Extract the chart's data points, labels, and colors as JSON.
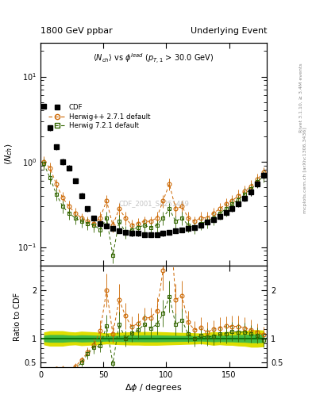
{
  "title_left": "1800 GeV ppbar",
  "title_right": "Underlying Event",
  "subtitle": "$\\langle N_{ch}\\rangle$ vs $\\phi^{lead}$ ($p_{T,1}$ > 30.0 GeV)",
  "ylabel_main": "$\\langle N_{ch}\\rangle$",
  "ylabel_ratio": "Ratio to CDF",
  "xlabel": "$\\Delta\\phi$ / degrees",
  "watermark": "CDF_2001_S4251469",
  "right_label_top": "Rivet 3.1.10, ≥ 3.4M events",
  "right_label_bottom": "mcplots.cern.ch [arXiv:1306.3436]",
  "cdf_x": [
    2.5,
    7.5,
    12.5,
    17.5,
    22.5,
    27.5,
    32.5,
    37.5,
    42.5,
    47.5,
    52.5,
    57.5,
    62.5,
    67.5,
    72.5,
    77.5,
    82.5,
    87.5,
    92.5,
    97.5,
    102.5,
    107.5,
    112.5,
    117.5,
    122.5,
    127.5,
    132.5,
    137.5,
    142.5,
    147.5,
    152.5,
    157.5,
    162.5,
    167.5,
    172.5,
    177.5
  ],
  "cdf_y": [
    4.5,
    2.5,
    1.5,
    1.0,
    0.85,
    0.6,
    0.4,
    0.28,
    0.22,
    0.19,
    0.175,
    0.165,
    0.155,
    0.15,
    0.145,
    0.145,
    0.14,
    0.14,
    0.14,
    0.145,
    0.15,
    0.155,
    0.16,
    0.165,
    0.17,
    0.18,
    0.195,
    0.21,
    0.23,
    0.255,
    0.28,
    0.32,
    0.37,
    0.44,
    0.55,
    0.7
  ],
  "cdf_yerr": [
    0.3,
    0.2,
    0.12,
    0.08,
    0.06,
    0.04,
    0.03,
    0.02,
    0.015,
    0.012,
    0.01,
    0.01,
    0.01,
    0.01,
    0.01,
    0.01,
    0.01,
    0.01,
    0.01,
    0.01,
    0.01,
    0.01,
    0.01,
    0.01,
    0.01,
    0.01,
    0.012,
    0.015,
    0.015,
    0.018,
    0.02,
    0.025,
    0.03,
    0.04,
    0.05,
    0.06
  ],
  "hpp_x": [
    2.5,
    7.5,
    12.5,
    17.5,
    22.5,
    27.5,
    32.5,
    37.5,
    42.5,
    47.5,
    52.5,
    57.5,
    62.5,
    67.5,
    72.5,
    77.5,
    82.5,
    87.5,
    92.5,
    97.5,
    102.5,
    107.5,
    112.5,
    117.5,
    122.5,
    127.5,
    132.5,
    137.5,
    142.5,
    147.5,
    152.5,
    157.5,
    162.5,
    167.5,
    172.5,
    177.5
  ],
  "hpp_y": [
    1.0,
    0.85,
    0.55,
    0.38,
    0.3,
    0.25,
    0.22,
    0.2,
    0.19,
    0.22,
    0.35,
    0.18,
    0.28,
    0.22,
    0.18,
    0.19,
    0.2,
    0.2,
    0.22,
    0.35,
    0.55,
    0.28,
    0.3,
    0.22,
    0.2,
    0.22,
    0.22,
    0.25,
    0.28,
    0.32,
    0.35,
    0.4,
    0.45,
    0.52,
    0.62,
    0.75
  ],
  "hpp_yerr": [
    0.15,
    0.12,
    0.08,
    0.06,
    0.05,
    0.04,
    0.03,
    0.03,
    0.03,
    0.04,
    0.06,
    0.03,
    0.05,
    0.04,
    0.03,
    0.03,
    0.03,
    0.03,
    0.04,
    0.06,
    0.09,
    0.05,
    0.05,
    0.04,
    0.03,
    0.04,
    0.04,
    0.04,
    0.05,
    0.05,
    0.06,
    0.07,
    0.08,
    0.09,
    0.1,
    0.12
  ],
  "h721_x": [
    2.5,
    7.5,
    12.5,
    17.5,
    22.5,
    27.5,
    32.5,
    37.5,
    42.5,
    47.5,
    52.5,
    57.5,
    62.5,
    67.5,
    72.5,
    77.5,
    82.5,
    87.5,
    92.5,
    97.5,
    102.5,
    107.5,
    112.5,
    117.5,
    122.5,
    127.5,
    132.5,
    137.5,
    142.5,
    147.5,
    152.5,
    157.5,
    162.5,
    167.5,
    172.5,
    177.5
  ],
  "h721_y": [
    0.95,
    0.65,
    0.42,
    0.3,
    0.25,
    0.22,
    0.2,
    0.19,
    0.18,
    0.16,
    0.22,
    0.08,
    0.2,
    0.15,
    0.16,
    0.17,
    0.18,
    0.17,
    0.18,
    0.22,
    0.28,
    0.2,
    0.22,
    0.18,
    0.17,
    0.19,
    0.2,
    0.22,
    0.25,
    0.28,
    0.32,
    0.36,
    0.42,
    0.48,
    0.58,
    0.68
  ],
  "h721_yerr": [
    0.14,
    0.1,
    0.07,
    0.05,
    0.04,
    0.035,
    0.03,
    0.03,
    0.03,
    0.025,
    0.04,
    0.015,
    0.04,
    0.025,
    0.025,
    0.028,
    0.03,
    0.028,
    0.03,
    0.04,
    0.05,
    0.035,
    0.04,
    0.03,
    0.028,
    0.03,
    0.035,
    0.038,
    0.04,
    0.05,
    0.055,
    0.06,
    0.07,
    0.08,
    0.09,
    0.11
  ],
  "cdf_color": "#000000",
  "hpp_color": "#cc6600",
  "h721_color": "#336600",
  "band_green": "#44bb44",
  "band_yellow": "#dddd00",
  "ylim_main": [
    0.06,
    25
  ],
  "ylim_ratio": [
    0.4,
    2.5
  ],
  "xlim": [
    0,
    180
  ],
  "xticks": [
    0,
    50,
    100,
    150
  ],
  "ratio_yticks": [
    0.5,
    1.0,
    2.0
  ]
}
